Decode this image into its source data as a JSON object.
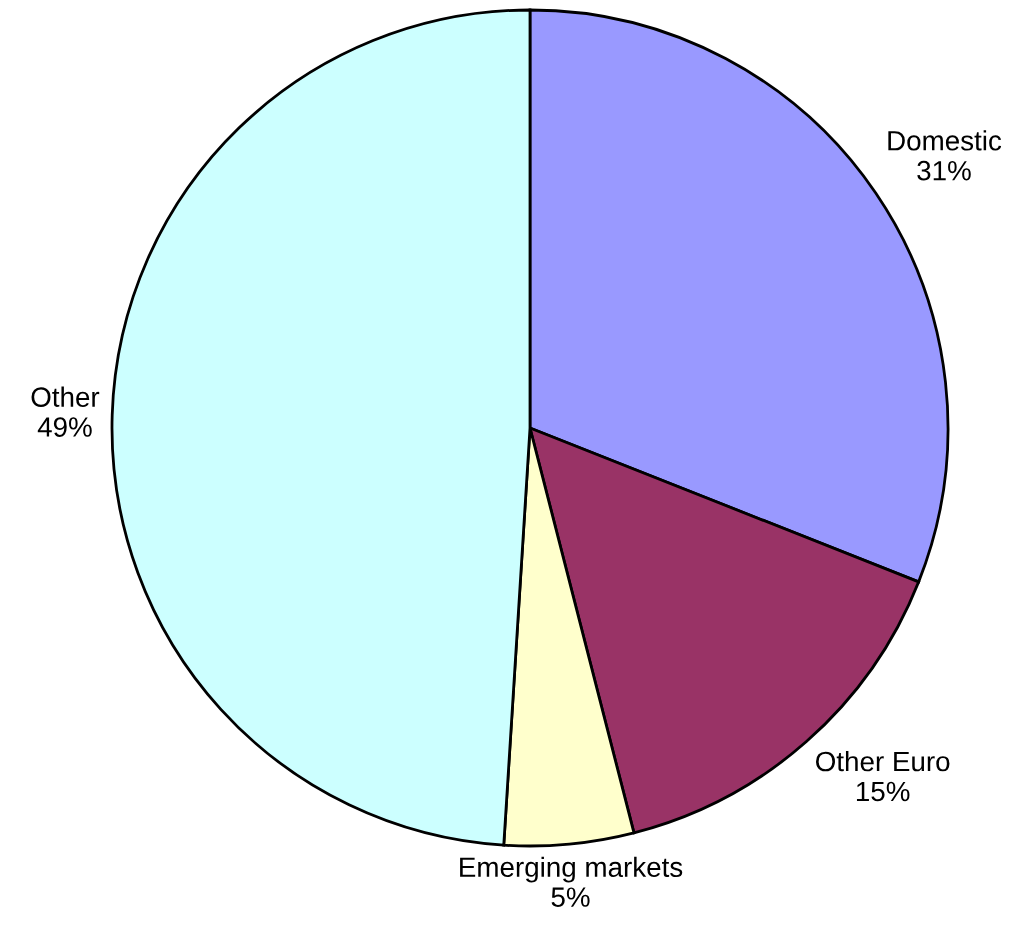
{
  "chart_data": {
    "type": "pie",
    "categories": [
      "Domestic",
      "Other Euro",
      "Emerging markets",
      "Other"
    ],
    "values": [
      31,
      15,
      5,
      49
    ],
    "colors": [
      "#9999ff",
      "#993366",
      "#ffffcc",
      "#ccffff"
    ],
    "value_labels": [
      "31%",
      "15%",
      "5%",
      "49%"
    ]
  }
}
